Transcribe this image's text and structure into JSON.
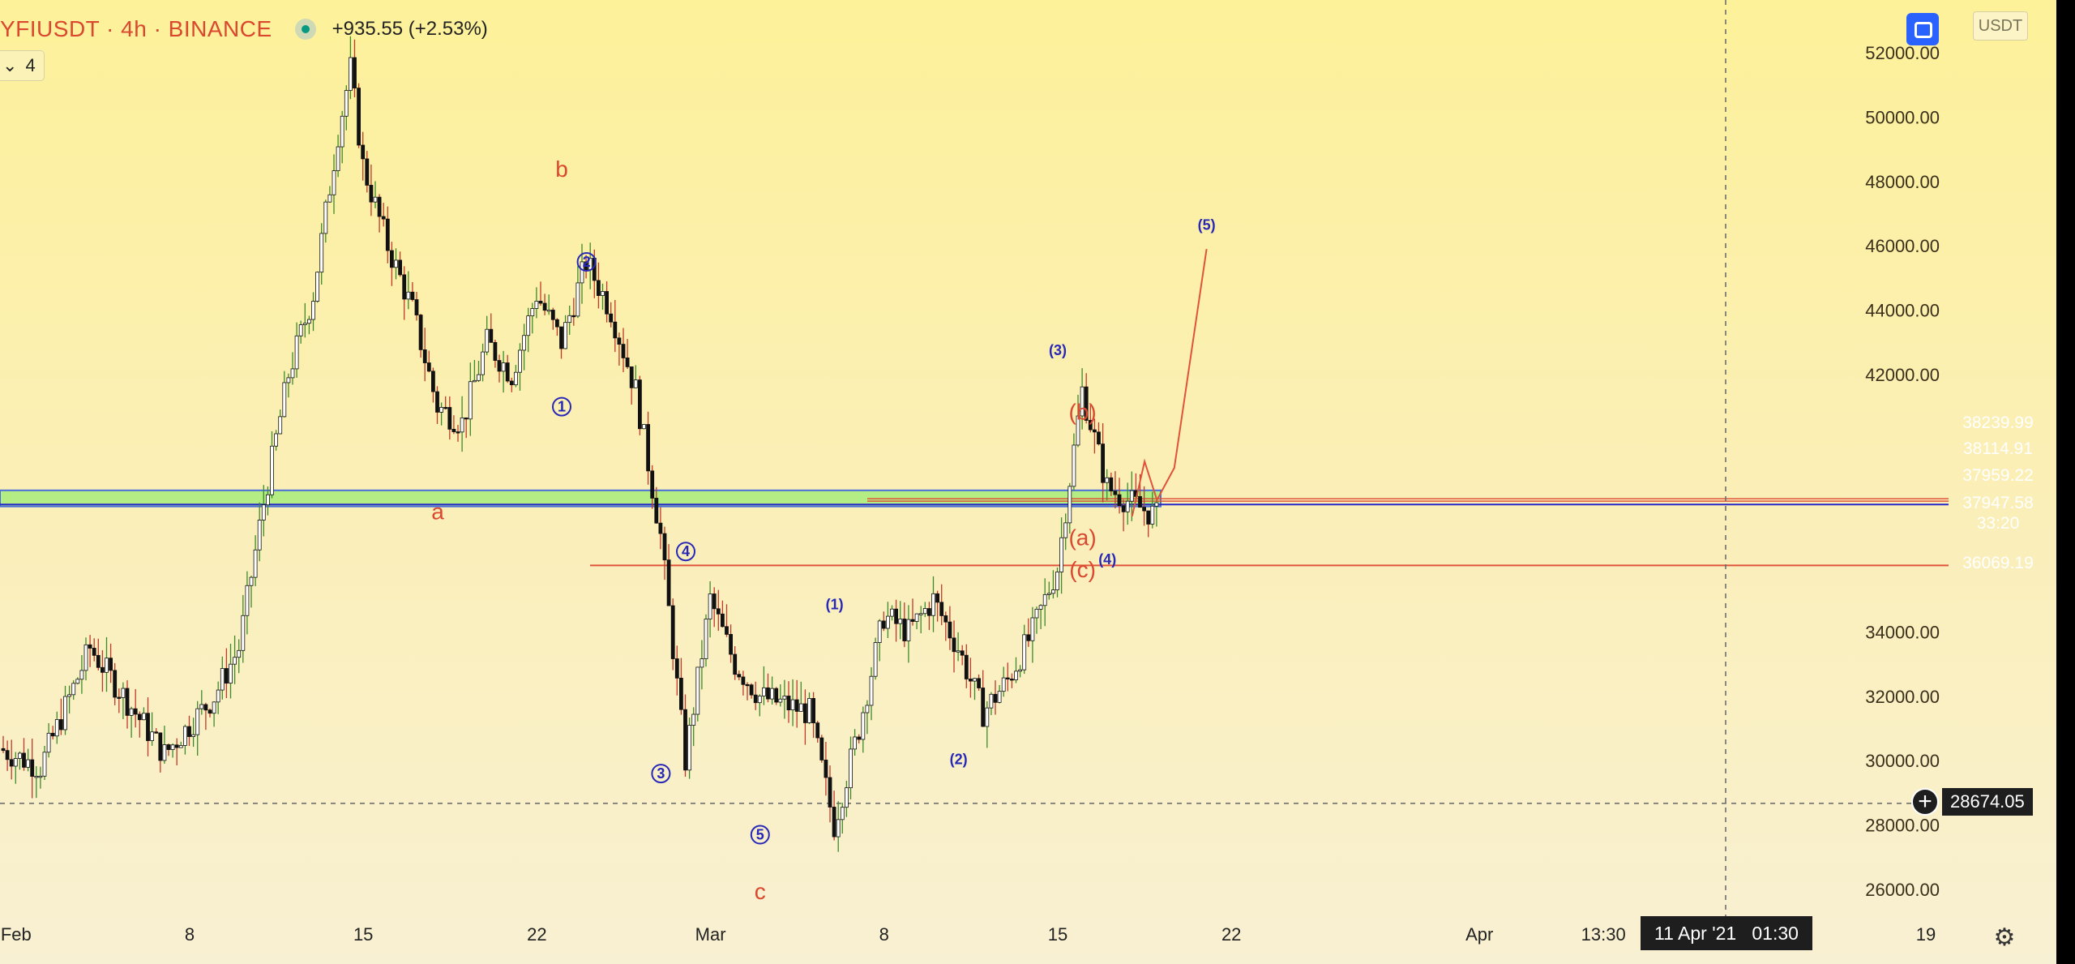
{
  "header": {
    "symbol": "YFIUSDT · 4h · BINANCE",
    "change": "+935.55 (+2.53%)",
    "indicator_count": "4"
  },
  "toolbar": {
    "currency": "USDT"
  },
  "price_tags": [
    {
      "value": "38239.99",
      "color": "#f23645"
    },
    {
      "value": "38114.91",
      "color": "#f23645"
    },
    {
      "value": "37959.22",
      "color": "#2929c8"
    },
    {
      "value": "37947.58",
      "color": "#b58af5",
      "countdown": "33:20"
    },
    {
      "value": "36069.19",
      "color": "#f23645"
    }
  ],
  "crosshair": {
    "price": "28674.05",
    "time": "11 Apr '21   01:30"
  },
  "colors": {
    "wave_red": "#d9482f",
    "wave_blue": "#2828b8",
    "zone_fill": "#a6ec7a",
    "candle_up": "#ffffff",
    "candle_down": "#111111",
    "wick_up": "#3d8a2a",
    "wick_down": "#c0392b"
  },
  "chart_data": {
    "type": "candlestick",
    "title": "YFIUSDT · 4h · BINANCE",
    "xlabel": "",
    "ylabel": "",
    "ylim": [
      24800,
      53200
    ],
    "y_ticks": [
      "52000.00",
      "50000.00",
      "48000.00",
      "46000.00",
      "44000.00",
      "42000.00",
      "34000.00",
      "32000.00",
      "30000.00",
      "28000.00",
      "26000.00"
    ],
    "x_ticks": [
      {
        "label": "Feb",
        "date": "2021-02-01"
      },
      {
        "label": "8",
        "date": "2021-02-08"
      },
      {
        "label": "15",
        "date": "2021-02-15"
      },
      {
        "label": "22",
        "date": "2021-02-22"
      },
      {
        "label": "Mar",
        "date": "2021-03-01"
      },
      {
        "label": "8",
        "date": "2021-03-08"
      },
      {
        "label": "15",
        "date": "2021-03-15"
      },
      {
        "label": "22",
        "date": "2021-03-22"
      },
      {
        "label": "Apr",
        "date": "2021-04-01"
      },
      {
        "label": "13:30",
        "date": "2021-04-06"
      },
      {
        "label": "19",
        "date": "2021-04-19"
      }
    ],
    "price_path": [
      {
        "date": "2021-01-31",
        "price": 30500
      },
      {
        "date": "2021-02-02",
        "price": 29800
      },
      {
        "date": "2021-02-04",
        "price": 33500
      },
      {
        "date": "2021-02-07",
        "price": 30200
      },
      {
        "date": "2021-02-09",
        "price": 32000
      },
      {
        "date": "2021-02-10",
        "price": 33500
      },
      {
        "date": "2021-02-11",
        "price": 38000
      },
      {
        "date": "2021-02-12",
        "price": 42000
      },
      {
        "date": "2021-02-13",
        "price": 44500
      },
      {
        "date": "2021-02-14",
        "price": 49500
      },
      {
        "date": "2021-02-14.5",
        "price": 51500
      },
      {
        "date": "2021-02-15",
        "price": 48500
      },
      {
        "date": "2021-02-16",
        "price": 46000
      },
      {
        "date": "2021-02-17",
        "price": 44000
      },
      {
        "date": "2021-02-18",
        "price": 41000
      },
      {
        "date": "2021-02-19",
        "price": 40500
      },
      {
        "date": "2021-02-20",
        "price": 43000
      },
      {
        "date": "2021-02-21",
        "price": 42000
      },
      {
        "date": "2021-02-22",
        "price": 44500
      },
      {
        "date": "2021-02-23",
        "price": 43000
      },
      {
        "date": "2021-02-24",
        "price": 45500
      },
      {
        "date": "2021-02-25",
        "price": 44000
      },
      {
        "date": "2021-02-26",
        "price": 41500
      },
      {
        "date": "2021-02-27",
        "price": 37000
      },
      {
        "date": "2021-02-28",
        "price": 30000
      },
      {
        "date": "2021-03-01",
        "price": 35000
      },
      {
        "date": "2021-03-02",
        "price": 33000
      },
      {
        "date": "2021-03-03",
        "price": 32000
      },
      {
        "date": "2021-03-05",
        "price": 31500
      },
      {
        "date": "2021-03-06",
        "price": 28000
      },
      {
        "date": "2021-03-07",
        "price": 31000
      },
      {
        "date": "2021-03-08",
        "price": 34500
      },
      {
        "date": "2021-03-09",
        "price": 34000
      },
      {
        "date": "2021-03-10",
        "price": 35000
      },
      {
        "date": "2021-03-11",
        "price": 33500
      },
      {
        "date": "2021-03-12",
        "price": 31500
      },
      {
        "date": "2021-03-13",
        "price": 32500
      },
      {
        "date": "2021-03-14",
        "price": 34000
      },
      {
        "date": "2021-03-15",
        "price": 36000
      },
      {
        "date": "2021-03-16",
        "price": 41500
      },
      {
        "date": "2021-03-17",
        "price": 38500
      },
      {
        "date": "2021-03-18",
        "price": 38000
      },
      {
        "date": "2021-03-19",
        "price": 37600
      }
    ],
    "support_zone": {
      "low": 37900,
      "high": 38400
    },
    "horizontal_levels": [
      38239.99,
      38114.91,
      37959.22,
      37947.58,
      36069.19,
      28674.05
    ],
    "wave_labels": [
      {
        "text": "a",
        "date": "2021-02-18",
        "price": 37700,
        "color": "red"
      },
      {
        "text": "b",
        "date": "2021-02-23",
        "price": 48350,
        "color": "red"
      },
      {
        "text": "c",
        "date": "2021-03-03",
        "price": 25900,
        "color": "red"
      },
      {
        "text": "1",
        "date": "2021-02-23",
        "price": 41000,
        "color": "blue",
        "circled": true
      },
      {
        "text": "2",
        "date": "2021-02-24",
        "price": 45500,
        "color": "blue",
        "circled": true
      },
      {
        "text": "3",
        "date": "2021-02-27",
        "price": 29600,
        "color": "blue",
        "circled": true
      },
      {
        "text": "4",
        "date": "2021-02-28",
        "price": 36500,
        "color": "blue",
        "circled": true
      },
      {
        "text": "5",
        "date": "2021-03-03",
        "price": 27700,
        "color": "blue",
        "circled": true
      },
      {
        "text": "(1)",
        "date": "2021-03-06",
        "price": 34900,
        "color": "blue"
      },
      {
        "text": "(2)",
        "date": "2021-03-11",
        "price": 30100,
        "color": "blue"
      },
      {
        "text": "(3)",
        "date": "2021-03-15",
        "price": 42800,
        "color": "blue"
      },
      {
        "text": "(4)",
        "date": "2021-03-17",
        "price": 36300,
        "color": "blue"
      },
      {
        "text": "(5)",
        "date": "2021-03-21",
        "price": 46700,
        "color": "blue"
      },
      {
        "text": "(a)",
        "date": "2021-03-16",
        "price": 36900,
        "color": "red"
      },
      {
        "text": "(b)",
        "date": "2021-03-16",
        "price": 40800,
        "color": "red"
      },
      {
        "text": "(c)",
        "date": "2021-03-16",
        "price": 35900,
        "color": "red"
      }
    ],
    "projection_path": [
      {
        "date": "2021-03-18",
        "price": 37600
      },
      {
        "date": "2021-03-18.5",
        "price": 39300
      },
      {
        "date": "2021-03-19",
        "price": 38100
      },
      {
        "date": "2021-03-19.7",
        "price": 39100
      },
      {
        "date": "2021-03-21",
        "price": 45900
      }
    ],
    "grid": false,
    "legend": "none"
  }
}
